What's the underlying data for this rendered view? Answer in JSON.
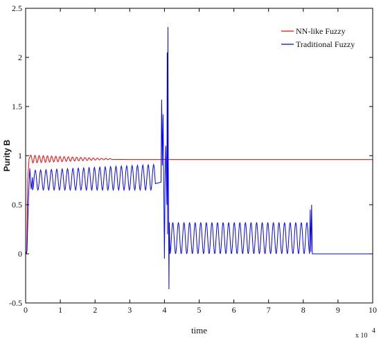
{
  "chart_data": {
    "type": "line",
    "title": "",
    "xlabel": "time",
    "ylabel": "Purity B",
    "x_exponent_label": "x 10",
    "x_exponent_power": "4",
    "xlim": [
      0,
      10
    ],
    "ylim": [
      -0.5,
      2.5
    ],
    "x_ticks": [
      "0",
      "1",
      "2",
      "3",
      "4",
      "5",
      "6",
      "7",
      "8",
      "9",
      "10"
    ],
    "y_ticks": [
      "-0.5",
      "0",
      "0.5",
      "1",
      "1.5",
      "2",
      "2.5"
    ],
    "grid": false,
    "legend_position": "top-right",
    "series": [
      {
        "name": "NN-like Fuzzy",
        "color": "#ff0000",
        "x": [
          0,
          0.03,
          0.06,
          0.1,
          0.14,
          0.2,
          0.3,
          0.5,
          1.0,
          2.0,
          3.0,
          10.0
        ],
        "y": [
          0,
          0.0,
          0.75,
          0.97,
          1.0,
          0.93,
          0.98,
          0.95,
          0.96,
          0.96,
          0.96,
          0.96
        ],
        "oscillation": {
          "x_start": 0.15,
          "x_end": 2.5,
          "period": 0.12,
          "center": 0.965,
          "amplitude_start": 0.04,
          "amplitude_end": 0.003
        }
      },
      {
        "name": "Traditional Fuzzy",
        "color": "#0000ff",
        "x": [
          0,
          0.04,
          0.08,
          0.12,
          0.16,
          0.2,
          3.6,
          3.9,
          3.92,
          3.94,
          3.96,
          3.98,
          4.0,
          4.02,
          4.04,
          4.07,
          4.08,
          4.09,
          4.1,
          4.11,
          4.12,
          4.13,
          4.14,
          4.16,
          8.18,
          8.2,
          8.22,
          8.24,
          8.26,
          10.0
        ],
        "y": [
          0,
          0.03,
          0.55,
          0.87,
          0.66,
          0.78,
          0.78,
          0.73,
          1.57,
          0.9,
          1.42,
          0.7,
          -0.05,
          0.82,
          1.1,
          0.5,
          2.05,
          0.2,
          2.31,
          0.9,
          0.4,
          -0.36,
          0.32,
          0.0,
          0.0,
          0.45,
          0.02,
          0.5,
          0.0,
          0.0
        ],
        "oscillation_segments": [
          {
            "x_start": 0.2,
            "x_end": 3.75,
            "period": 0.155,
            "low": 0.65,
            "high_start": 0.85,
            "high_end": 0.91
          },
          {
            "x_start": 4.16,
            "x_end": 8.18,
            "period": 0.161,
            "low": 0.0,
            "high": 0.32
          }
        ]
      }
    ]
  }
}
